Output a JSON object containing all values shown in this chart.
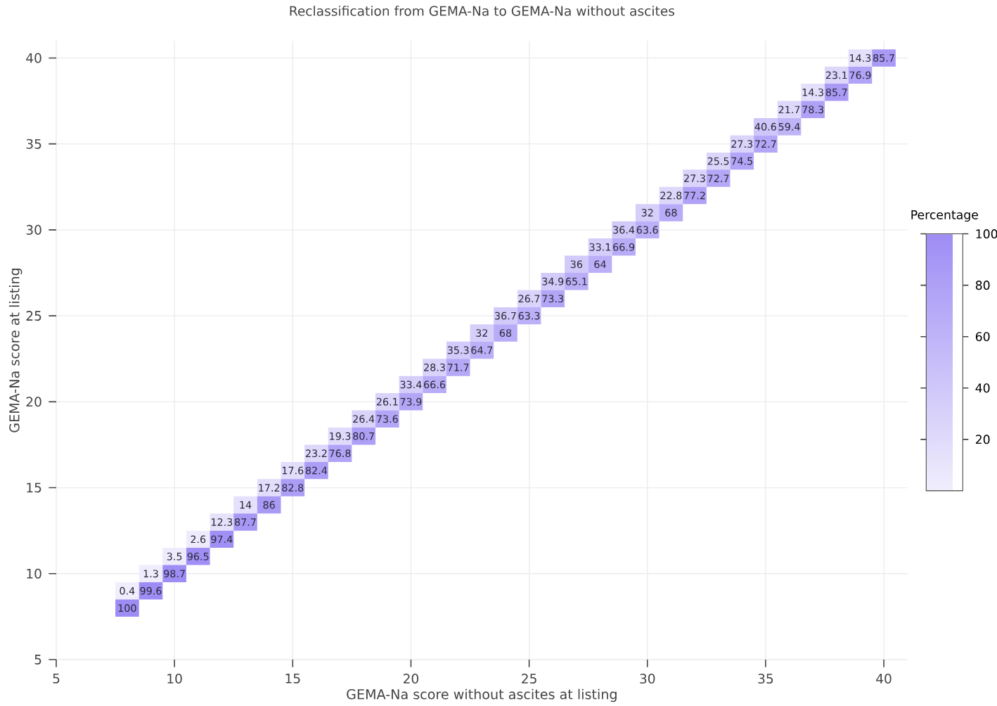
{
  "chart_data": {
    "type": "heatmap",
    "title": "Reclassification from GEMA-Na to GEMA-Na without ascites",
    "xlabel": "GEMA-Na score without ascites at listing",
    "ylabel": "GEMA-Na score at listing",
    "clabel": "Percentage",
    "x": [
      8,
      9,
      10,
      11,
      12,
      13,
      14,
      15,
      16,
      17,
      18,
      19,
      20,
      21,
      22,
      23,
      24,
      25,
      26,
      27,
      28,
      29,
      30,
      31,
      32,
      33,
      34,
      35,
      36,
      37,
      38,
      39,
      40
    ],
    "y": [
      40,
      39,
      38,
      37,
      36,
      35,
      34,
      33,
      32,
      31,
      30,
      29,
      28,
      27,
      26,
      25,
      24,
      23,
      22,
      21,
      20,
      19,
      18,
      17,
      16,
      15,
      14,
      13,
      12,
      11,
      10,
      9,
      8
    ],
    "cells": [
      [
        null,
        null,
        null,
        null,
        null,
        null,
        null,
        null,
        null,
        null,
        null,
        null,
        null,
        null,
        null,
        null,
        null,
        null,
        null,
        null,
        null,
        null,
        null,
        null,
        null,
        null,
        null,
        null,
        null,
        null,
        null,
        14.3,
        85.7
      ],
      [
        null,
        null,
        null,
        null,
        null,
        null,
        null,
        null,
        null,
        null,
        null,
        null,
        null,
        null,
        null,
        null,
        null,
        null,
        null,
        null,
        null,
        null,
        null,
        null,
        null,
        null,
        null,
        null,
        null,
        null,
        23.1,
        76.9,
        null
      ],
      [
        null,
        null,
        null,
        null,
        null,
        null,
        null,
        null,
        null,
        null,
        null,
        null,
        null,
        null,
        null,
        null,
        null,
        null,
        null,
        null,
        null,
        null,
        null,
        null,
        null,
        null,
        null,
        null,
        null,
        14.3,
        85.7,
        null,
        null
      ],
      [
        null,
        null,
        null,
        null,
        null,
        null,
        null,
        null,
        null,
        null,
        null,
        null,
        null,
        null,
        null,
        null,
        null,
        null,
        null,
        null,
        null,
        null,
        null,
        null,
        null,
        null,
        null,
        null,
        21.7,
        78.3,
        null,
        null,
        null
      ],
      [
        null,
        null,
        null,
        null,
        null,
        null,
        null,
        null,
        null,
        null,
        null,
        null,
        null,
        null,
        null,
        null,
        null,
        null,
        null,
        null,
        null,
        null,
        null,
        null,
        null,
        null,
        null,
        40.6,
        59.4,
        null,
        null,
        null,
        null
      ],
      [
        null,
        null,
        null,
        null,
        null,
        null,
        null,
        null,
        null,
        null,
        null,
        null,
        null,
        null,
        null,
        null,
        null,
        null,
        null,
        null,
        null,
        null,
        null,
        null,
        null,
        null,
        27.3,
        72.7,
        null,
        null,
        null,
        null,
        null
      ],
      [
        null,
        null,
        null,
        null,
        null,
        null,
        null,
        null,
        null,
        null,
        null,
        null,
        null,
        null,
        null,
        null,
        null,
        null,
        null,
        null,
        null,
        null,
        null,
        null,
        null,
        25.5,
        74.5,
        null,
        null,
        null,
        null,
        null,
        null
      ],
      [
        null,
        null,
        null,
        null,
        null,
        null,
        null,
        null,
        null,
        null,
        null,
        null,
        null,
        null,
        null,
        null,
        null,
        null,
        null,
        null,
        null,
        null,
        null,
        null,
        27.3,
        72.7,
        null,
        null,
        null,
        null,
        null,
        null,
        null
      ],
      [
        null,
        null,
        null,
        null,
        null,
        null,
        null,
        null,
        null,
        null,
        null,
        null,
        null,
        null,
        null,
        null,
        null,
        null,
        null,
        null,
        null,
        null,
        null,
        22.8,
        77.2,
        null,
        null,
        null,
        null,
        null,
        null,
        null,
        null
      ],
      [
        null,
        null,
        null,
        null,
        null,
        null,
        null,
        null,
        null,
        null,
        null,
        null,
        null,
        null,
        null,
        null,
        null,
        null,
        null,
        null,
        null,
        null,
        32,
        68,
        null,
        null,
        null,
        null,
        null,
        null,
        null,
        null,
        null
      ],
      [
        null,
        null,
        null,
        null,
        null,
        null,
        null,
        null,
        null,
        null,
        null,
        null,
        null,
        null,
        null,
        null,
        null,
        null,
        null,
        null,
        null,
        36.4,
        63.6,
        null,
        null,
        null,
        null,
        null,
        null,
        null,
        null,
        null,
        null
      ],
      [
        null,
        null,
        null,
        null,
        null,
        null,
        null,
        null,
        null,
        null,
        null,
        null,
        null,
        null,
        null,
        null,
        null,
        null,
        null,
        null,
        33.1,
        66.9,
        null,
        null,
        null,
        null,
        null,
        null,
        null,
        null,
        null,
        null,
        null
      ],
      [
        null,
        null,
        null,
        null,
        null,
        null,
        null,
        null,
        null,
        null,
        null,
        null,
        null,
        null,
        null,
        null,
        null,
        null,
        null,
        36,
        64,
        null,
        null,
        null,
        null,
        null,
        null,
        null,
        null,
        null,
        null,
        null,
        null
      ],
      [
        null,
        null,
        null,
        null,
        null,
        null,
        null,
        null,
        null,
        null,
        null,
        null,
        null,
        null,
        null,
        null,
        null,
        null,
        34.9,
        65.1,
        null,
        null,
        null,
        null,
        null,
        null,
        null,
        null,
        null,
        null,
        null,
        null,
        null
      ],
      [
        null,
        null,
        null,
        null,
        null,
        null,
        null,
        null,
        null,
        null,
        null,
        null,
        null,
        null,
        null,
        null,
        null,
        26.7,
        73.3,
        null,
        null,
        null,
        null,
        null,
        null,
        null,
        null,
        null,
        null,
        null,
        null,
        null,
        null
      ],
      [
        null,
        null,
        null,
        null,
        null,
        null,
        null,
        null,
        null,
        null,
        null,
        null,
        null,
        null,
        null,
        null,
        36.7,
        63.3,
        null,
        null,
        null,
        null,
        null,
        null,
        null,
        null,
        null,
        null,
        null,
        null,
        null,
        null,
        null
      ],
      [
        null,
        null,
        null,
        null,
        null,
        null,
        null,
        null,
        null,
        null,
        null,
        null,
        null,
        null,
        null,
        32,
        68,
        null,
        null,
        null,
        null,
        null,
        null,
        null,
        null,
        null,
        null,
        null,
        null,
        null,
        null,
        null,
        null
      ],
      [
        null,
        null,
        null,
        null,
        null,
        null,
        null,
        null,
        null,
        null,
        null,
        null,
        null,
        null,
        35.3,
        64.7,
        null,
        null,
        null,
        null,
        null,
        null,
        null,
        null,
        null,
        null,
        null,
        null,
        null,
        null,
        null,
        null,
        null
      ],
      [
        null,
        null,
        null,
        null,
        null,
        null,
        null,
        null,
        null,
        null,
        null,
        null,
        null,
        28.3,
        71.7,
        null,
        null,
        null,
        null,
        null,
        null,
        null,
        null,
        null,
        null,
        null,
        null,
        null,
        null,
        null,
        null,
        null,
        null
      ],
      [
        null,
        null,
        null,
        null,
        null,
        null,
        null,
        null,
        null,
        null,
        null,
        null,
        33.4,
        66.6,
        null,
        null,
        null,
        null,
        null,
        null,
        null,
        null,
        null,
        null,
        null,
        null,
        null,
        null,
        null,
        null,
        null,
        null,
        null
      ],
      [
        null,
        null,
        null,
        null,
        null,
        null,
        null,
        null,
        null,
        null,
        null,
        26.1,
        73.9,
        null,
        null,
        null,
        null,
        null,
        null,
        null,
        null,
        null,
        null,
        null,
        null,
        null,
        null,
        null,
        null,
        null,
        null,
        null,
        null
      ],
      [
        null,
        null,
        null,
        null,
        null,
        null,
        null,
        null,
        null,
        null,
        26.4,
        73.6,
        null,
        null,
        null,
        null,
        null,
        null,
        null,
        null,
        null,
        null,
        null,
        null,
        null,
        null,
        null,
        null,
        null,
        null,
        null,
        null,
        null
      ],
      [
        null,
        null,
        null,
        null,
        null,
        null,
        null,
        null,
        null,
        19.3,
        80.7,
        null,
        null,
        null,
        null,
        null,
        null,
        null,
        null,
        null,
        null,
        null,
        null,
        null,
        null,
        null,
        null,
        null,
        null,
        null,
        null,
        null,
        null
      ],
      [
        null,
        null,
        null,
        null,
        null,
        null,
        null,
        null,
        23.2,
        76.8,
        null,
        null,
        null,
        null,
        null,
        null,
        null,
        null,
        null,
        null,
        null,
        null,
        null,
        null,
        null,
        null,
        null,
        null,
        null,
        null,
        null,
        null,
        null
      ],
      [
        null,
        null,
        null,
        null,
        null,
        null,
        null,
        17.6,
        82.4,
        null,
        null,
        null,
        null,
        null,
        null,
        null,
        null,
        null,
        null,
        null,
        null,
        null,
        null,
        null,
        null,
        null,
        null,
        null,
        null,
        null,
        null,
        null,
        null
      ],
      [
        null,
        null,
        null,
        null,
        null,
        null,
        17.2,
        82.8,
        null,
        null,
        null,
        null,
        null,
        null,
        null,
        null,
        null,
        null,
        null,
        null,
        null,
        null,
        null,
        null,
        null,
        null,
        null,
        null,
        null,
        null,
        null,
        null,
        null
      ],
      [
        null,
        null,
        null,
        null,
        null,
        14,
        86,
        null,
        null,
        null,
        null,
        null,
        null,
        null,
        null,
        null,
        null,
        null,
        null,
        null,
        null,
        null,
        null,
        null,
        null,
        null,
        null,
        null,
        null,
        null,
        null,
        null,
        null
      ],
      [
        null,
        null,
        null,
        null,
        12.3,
        87.7,
        null,
        null,
        null,
        null,
        null,
        null,
        null,
        null,
        null,
        null,
        null,
        null,
        null,
        null,
        null,
        null,
        null,
        null,
        null,
        null,
        null,
        null,
        null,
        null,
        null,
        null,
        null
      ],
      [
        null,
        null,
        null,
        2.6,
        97.4,
        null,
        null,
        null,
        null,
        null,
        null,
        null,
        null,
        null,
        null,
        null,
        null,
        null,
        null,
        null,
        null,
        null,
        null,
        null,
        null,
        null,
        null,
        null,
        null,
        null,
        null,
        null,
        null
      ],
      [
        null,
        null,
        3.5,
        96.5,
        null,
        null,
        null,
        null,
        null,
        null,
        null,
        null,
        null,
        null,
        null,
        null,
        null,
        null,
        null,
        null,
        null,
        null,
        null,
        null,
        null,
        null,
        null,
        null,
        null,
        null,
        null,
        null,
        null
      ],
      [
        null,
        1.3,
        98.7,
        null,
        null,
        null,
        null,
        null,
        null,
        null,
        null,
        null,
        null,
        null,
        null,
        null,
        null,
        null,
        null,
        null,
        null,
        null,
        null,
        null,
        null,
        null,
        null,
        null,
        null,
        null,
        null,
        null,
        null
      ],
      [
        0.4,
        99.6,
        null,
        null,
        null,
        null,
        null,
        null,
        null,
        null,
        null,
        null,
        null,
        null,
        null,
        null,
        null,
        null,
        null,
        null,
        null,
        null,
        null,
        null,
        null,
        null,
        null,
        null,
        null,
        null,
        null,
        null,
        null
      ],
      [
        100,
        null,
        null,
        null,
        null,
        null,
        null,
        null,
        null,
        null,
        null,
        null,
        null,
        null,
        null,
        null,
        null,
        null,
        null,
        null,
        null,
        null,
        null,
        null,
        null,
        null,
        null,
        null,
        null,
        null,
        null,
        null,
        null
      ]
    ],
    "data_labels": true,
    "xlim": [
      5,
      41
    ],
    "ylim": [
      5,
      41
    ],
    "xticks": [
      5,
      10,
      15,
      20,
      25,
      30,
      35,
      40
    ],
    "yticks": [
      5,
      10,
      15,
      20,
      25,
      30,
      35,
      40
    ],
    "clim": [
      0,
      100
    ],
    "cticks": [
      20,
      40,
      60,
      80,
      100
    ],
    "grid": true
  }
}
